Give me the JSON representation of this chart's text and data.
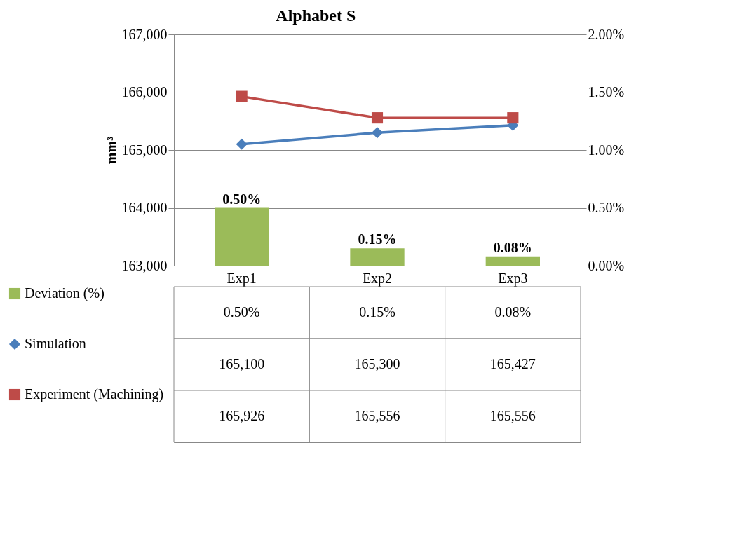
{
  "chart_data": {
    "type": "line",
    "title": "Alphabet S",
    "ylabel": "mm³",
    "categories": [
      "Exp1",
      "Exp2",
      "Exp3"
    ],
    "series": [
      {
        "name": "Deviation (%)",
        "type": "bar",
        "axis": "y2",
        "color": "#9bbb59",
        "values": [
          0.5,
          0.15,
          0.08
        ],
        "value_labels": [
          "0.50%",
          "0.15%",
          "0.08%"
        ]
      },
      {
        "name": "Simulation",
        "color": "#4a7ebb",
        "marker": "diamond",
        "values": [
          165100,
          165300,
          165427
        ],
        "value_labels": [
          "165,100",
          "165,300",
          "165,427"
        ]
      },
      {
        "name": "Experiment (Machining)",
        "color": "#be4b48",
        "marker": "square",
        "values": [
          165926,
          165556,
          165556
        ],
        "value_labels": [
          "165,926",
          "165,556",
          "165,556"
        ]
      }
    ],
    "ylim": [
      163000,
      167000
    ],
    "yticks": [
      {
        "value": 163000,
        "label": "163,000"
      },
      {
        "value": 164000,
        "label": "164,000"
      },
      {
        "value": 165000,
        "label": "165,000"
      },
      {
        "value": 166000,
        "label": "166,000"
      },
      {
        "value": 167000,
        "label": "167,000"
      }
    ],
    "y2lim": [
      0,
      2
    ],
    "y2ticks": [
      {
        "value": 0,
        "label": "0.00%"
      },
      {
        "value": 0.5,
        "label": "0.50%"
      },
      {
        "value": 1,
        "label": "1.00%"
      },
      {
        "value": 1.5,
        "label": "1.50%"
      },
      {
        "value": 2,
        "label": "2.00%"
      }
    ],
    "grid": "y",
    "legend": "bottom left"
  }
}
